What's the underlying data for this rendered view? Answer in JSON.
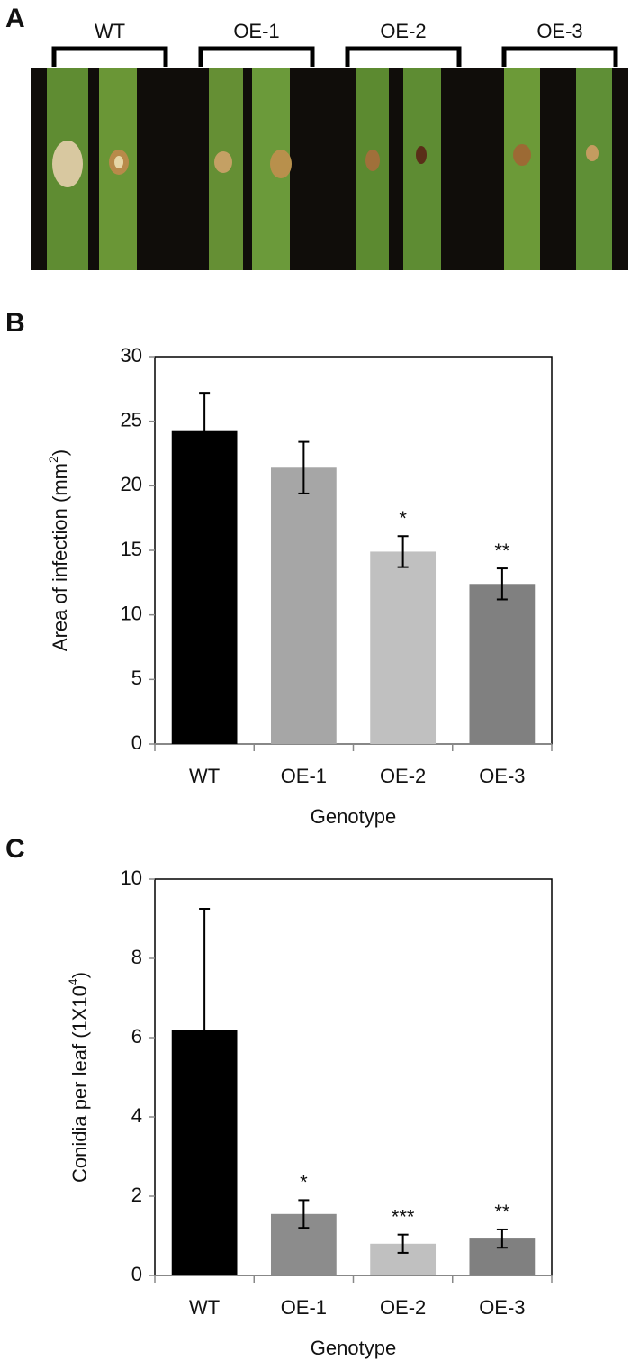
{
  "panel_a": {
    "label": "A",
    "groups": [
      "WT",
      "OE-1",
      "OE-2",
      "OE-3"
    ]
  },
  "chart_data": [
    {
      "type": "bar",
      "panel_label": "B",
      "categories": [
        "WT",
        "OE-1",
        "OE-2",
        "OE-3"
      ],
      "values": [
        24.3,
        21.4,
        14.9,
        12.4
      ],
      "errors": [
        2.9,
        2.0,
        1.2,
        1.2
      ],
      "annotations": [
        null,
        null,
        "*",
        "**"
      ],
      "colors": [
        "#000000",
        "#a6a6a6",
        "#c0c0c0",
        "#808080"
      ],
      "ylim": [
        0,
        30
      ],
      "yticks": [
        0,
        5,
        10,
        15,
        20,
        25,
        30
      ],
      "ylabel": {
        "text": "Area of infection (mm",
        "sup": "2",
        "tail": ")"
      },
      "xlabel": "Genotype"
    },
    {
      "type": "bar",
      "panel_label": "C",
      "categories": [
        "WT",
        "OE-1",
        "OE-2",
        "OE-3"
      ],
      "values": [
        6.2,
        1.55,
        0.8,
        0.93
      ],
      "errors": [
        3.05,
        0.35,
        0.23,
        0.23
      ],
      "annotations": [
        null,
        "*",
        "***",
        "**"
      ],
      "colors": [
        "#000000",
        "#8c8c8c",
        "#c0c0c0",
        "#808080"
      ],
      "ylim": [
        0,
        10
      ],
      "yticks": [
        0,
        2,
        4,
        6,
        8,
        10
      ],
      "ylabel": {
        "text": "Conidia per leaf (1X10",
        "sup": "4",
        "tail": ")"
      },
      "xlabel": "Genotype"
    }
  ]
}
